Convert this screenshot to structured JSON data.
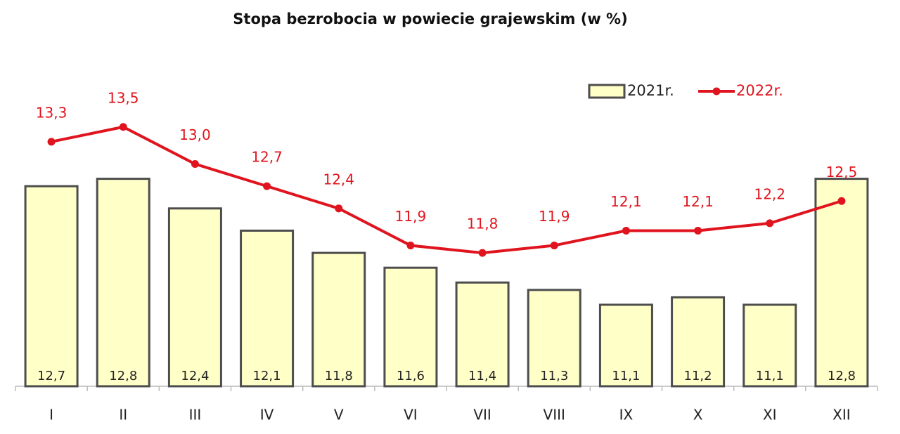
{
  "chart_data": {
    "type": "bar",
    "title": "Stopa bezrobocia w powiecie grajewskim (w %)",
    "categories": [
      "I",
      "II",
      "III",
      "IV",
      "V",
      "VI",
      "VII",
      "VIII",
      "IX",
      "X",
      "XI",
      "XII"
    ],
    "series": [
      {
        "name": "2021r.",
        "type": "bar",
        "color": "#ffffc8",
        "values": [
          12.7,
          12.8,
          12.4,
          12.1,
          11.8,
          11.6,
          11.4,
          11.3,
          11.1,
          11.2,
          11.1,
          12.8
        ],
        "value_labels": [
          "12,7",
          "12,8",
          "12,4",
          "12,1",
          "11,8",
          "11,6",
          "11,4",
          "11,3",
          "11,1",
          "11,2",
          "11,1",
          "12,8"
        ]
      },
      {
        "name": "2022r.",
        "type": "line",
        "color": "#e0141e",
        "values": [
          13.3,
          13.5,
          13.0,
          12.7,
          12.4,
          11.9,
          11.8,
          11.9,
          12.1,
          12.1,
          12.2,
          12.5
        ],
        "value_labels": [
          "13,3",
          "13,5",
          "13,0",
          "12,7",
          "12,4",
          "11,9",
          "11,8",
          "11,9",
          "12,1",
          "12,1",
          "12,2",
          "12,5"
        ]
      }
    ],
    "ylim": [
      10,
      14
    ],
    "legend": "top-right"
  }
}
